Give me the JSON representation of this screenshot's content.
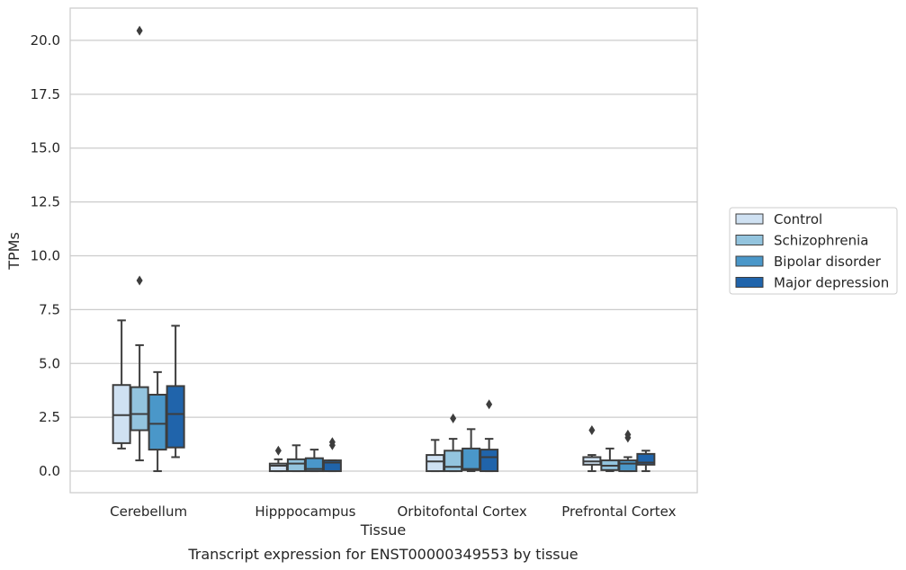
{
  "chart_data": {
    "type": "boxplot",
    "title": "",
    "caption": "Transcript expression for ENST00000349553 by tissue",
    "xlabel": "Tissue",
    "ylabel": "TPMs",
    "ylim": [
      -1.0,
      21.5
    ],
    "yticks": [
      0.0,
      2.5,
      5.0,
      7.5,
      10.0,
      12.5,
      15.0,
      17.5,
      20.0
    ],
    "ytick_labels": [
      "0.0",
      "2.5",
      "5.0",
      "7.5",
      "10.0",
      "12.5",
      "15.0",
      "17.5",
      "20.0"
    ],
    "grid": "horizontal",
    "legend_position": "right",
    "categories": [
      "Cerebellum",
      "Hipppocampus",
      "Orbitofontal Cortex",
      "Prefrontal Cortex"
    ],
    "series": [
      {
        "name": "Control",
        "color": "#cfe1f2",
        "boxes": [
          {
            "whislo": 1.05,
            "q1": 1.3,
            "med": 2.6,
            "q3": 4.0,
            "whishi": 7.0,
            "fliers": []
          },
          {
            "whislo": 0.0,
            "q1": 0.0,
            "med": 0.25,
            "q3": 0.35,
            "whishi": 0.55,
            "fliers": [
              0.95
            ]
          },
          {
            "whislo": 0.0,
            "q1": 0.0,
            "med": 0.45,
            "q3": 0.75,
            "whishi": 1.45,
            "fliers": []
          },
          {
            "whislo": 0.0,
            "q1": 0.3,
            "med": 0.45,
            "q3": 0.65,
            "whishi": 0.75,
            "fliers": [
              1.9
            ]
          }
        ]
      },
      {
        "name": "Schizophrenia",
        "color": "#93c4de",
        "boxes": [
          {
            "whislo": 0.5,
            "q1": 1.9,
            "med": 2.65,
            "q3": 3.9,
            "whishi": 5.85,
            "fliers": [
              8.85,
              20.45
            ]
          },
          {
            "whislo": 0.0,
            "q1": 0.0,
            "med": 0.35,
            "q3": 0.55,
            "whishi": 1.2,
            "fliers": []
          },
          {
            "whislo": 0.0,
            "q1": 0.0,
            "med": 0.2,
            "q3": 0.95,
            "whishi": 1.5,
            "fliers": [
              2.45
            ]
          },
          {
            "whislo": 0.0,
            "q1": 0.05,
            "med": 0.25,
            "q3": 0.5,
            "whishi": 1.05,
            "fliers": []
          }
        ]
      },
      {
        "name": "Bipolar disorder",
        "color": "#4a97c9",
        "boxes": [
          {
            "whislo": 0.0,
            "q1": 1.0,
            "med": 2.2,
            "q3": 3.55,
            "whishi": 4.6,
            "fliers": []
          },
          {
            "whislo": 0.0,
            "q1": 0.0,
            "med": 0.1,
            "q3": 0.6,
            "whishi": 1.0,
            "fliers": []
          },
          {
            "whislo": 0.0,
            "q1": 0.05,
            "med": 0.1,
            "q3": 1.05,
            "whishi": 1.95,
            "fliers": []
          },
          {
            "whislo": 0.0,
            "q1": 0.0,
            "med": 0.35,
            "q3": 0.5,
            "whishi": 0.65,
            "fliers": [
              1.55,
              1.7
            ]
          }
        ]
      },
      {
        "name": "Major depression",
        "color": "#2064ab",
        "boxes": [
          {
            "whislo": 0.65,
            "q1": 1.1,
            "med": 2.65,
            "q3": 3.95,
            "whishi": 6.75,
            "fliers": []
          },
          {
            "whislo": 0.0,
            "q1": 0.0,
            "med": 0.4,
            "q3": 0.5,
            "whishi": 0.5,
            "fliers": [
              1.2,
              1.35
            ]
          },
          {
            "whislo": 0.0,
            "q1": 0.0,
            "med": 0.65,
            "q3": 1.0,
            "whishi": 1.5,
            "fliers": [
              3.1
            ]
          },
          {
            "whislo": 0.0,
            "q1": 0.3,
            "med": 0.4,
            "q3": 0.8,
            "whishi": 0.95,
            "fliers": []
          }
        ]
      }
    ]
  }
}
